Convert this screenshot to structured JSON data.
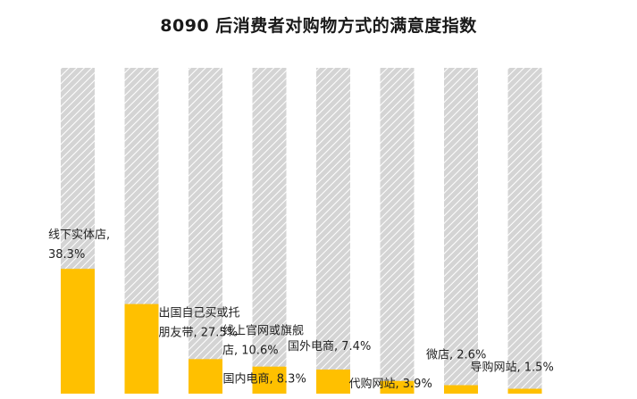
{
  "chart_data": {
    "type": "bar",
    "title": "8090 后消费者对购物方式的满意度指数",
    "xlabel": "",
    "ylabel": "",
    "ylim": [
      0,
      100
    ],
    "grid": false,
    "legend": "none",
    "categories": [
      "线下实体店",
      "出国自己买或托朋友带",
      "线上官网或旗舰店",
      "国内电商",
      "国外电商",
      "代购网站",
      "微店",
      "导购网站"
    ],
    "values": [
      38.3,
      27.5,
      10.6,
      8.3,
      7.4,
      3.9,
      2.6,
      1.5
    ],
    "labels": [
      [
        "线下实体店,",
        "38.3%"
      ],
      [
        "出国自己买或托",
        "朋友带, 27.5%"
      ],
      [
        "线上官网或旗舰",
        "店, 10.6%"
      ],
      [
        "国内电商, 8.3%"
      ],
      [
        "国外电商, 7.4%"
      ],
      [
        "代购网站, 3.9%"
      ],
      [
        "微店, 2.6%"
      ],
      [
        "导购网站, 1.5%"
      ]
    ],
    "colors": {
      "bar": "#FFC000",
      "background_bar": "#d4d4d4",
      "hatch": "#ffffff"
    }
  }
}
